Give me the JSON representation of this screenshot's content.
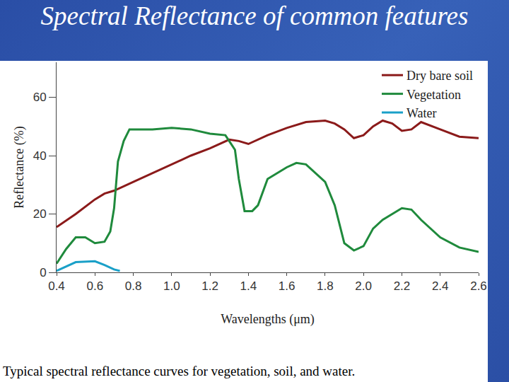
{
  "chart_data": {
    "type": "line",
    "title": "Spectral Reflectance of common features",
    "caption": "Typical spectral reflectance curves for vegetation, soil, and water.",
    "x_label": "Wavelengths (μm)",
    "y_label": "Reflectance (%)",
    "xlim": [
      0.4,
      2.6
    ],
    "xticks": [
      0.4,
      0.6,
      0.8,
      {
        "value": 1,
        "label": "1.0"
      },
      1.2,
      1.4,
      1.6,
      1.8,
      {
        "value": 2,
        "label": "2.0"
      },
      2.2,
      2.4,
      2.6
    ],
    "ylim": [
      0,
      72
    ],
    "yticks": [
      0,
      20,
      40,
      60
    ],
    "grid": false,
    "legend": "top right",
    "series": [
      {
        "name": "Dry bare soil",
        "color": "#8b1a1a",
        "x": [
          0.4,
          0.5,
          0.6,
          0.65,
          0.7,
          0.8,
          0.9,
          1.0,
          1.1,
          1.2,
          1.3,
          1.35,
          1.4,
          1.5,
          1.6,
          1.7,
          1.8,
          1.85,
          1.9,
          1.95,
          2.0,
          2.05,
          2.1,
          2.15,
          2.2,
          2.25,
          2.3,
          2.4,
          2.5,
          2.6
        ],
        "values": [
          15.5,
          20,
          25,
          27,
          28,
          31,
          34,
          37,
          40,
          42.5,
          45.5,
          45,
          44,
          47,
          49.5,
          51.5,
          52,
          51,
          49,
          46,
          47,
          50,
          52,
          51,
          48.5,
          49,
          51.5,
          49,
          46.5,
          46
        ]
      },
      {
        "name": "Vegetation",
        "color": "#1f8a3c",
        "x": [
          0.4,
          0.45,
          0.5,
          0.55,
          0.6,
          0.65,
          0.68,
          0.7,
          0.72,
          0.75,
          0.78,
          0.8,
          0.9,
          1.0,
          1.1,
          1.2,
          1.28,
          1.3,
          1.33,
          1.35,
          1.38,
          1.42,
          1.45,
          1.5,
          1.55,
          1.6,
          1.65,
          1.7,
          1.8,
          1.85,
          1.9,
          1.95,
          2.0,
          2.05,
          2.1,
          2.15,
          2.2,
          2.25,
          2.3,
          2.4,
          2.5,
          2.6
        ],
        "values": [
          3,
          8,
          12,
          12,
          10,
          10.5,
          14,
          22,
          38,
          45,
          49,
          49,
          49,
          49.5,
          49,
          47.5,
          47,
          45,
          42,
          32,
          21,
          21,
          23,
          32,
          34,
          36,
          37.5,
          37,
          31,
          23,
          10,
          7.5,
          9,
          15,
          18,
          20,
          22,
          21.5,
          18,
          12,
          8.5,
          7
        ]
      },
      {
        "name": "Water",
        "color": "#1aa0c8",
        "x": [
          0.4,
          0.45,
          0.5,
          0.6,
          0.65,
          0.7,
          0.73
        ],
        "values": [
          0.5,
          2,
          3.5,
          3.8,
          2.5,
          1,
          0.5
        ]
      }
    ]
  }
}
